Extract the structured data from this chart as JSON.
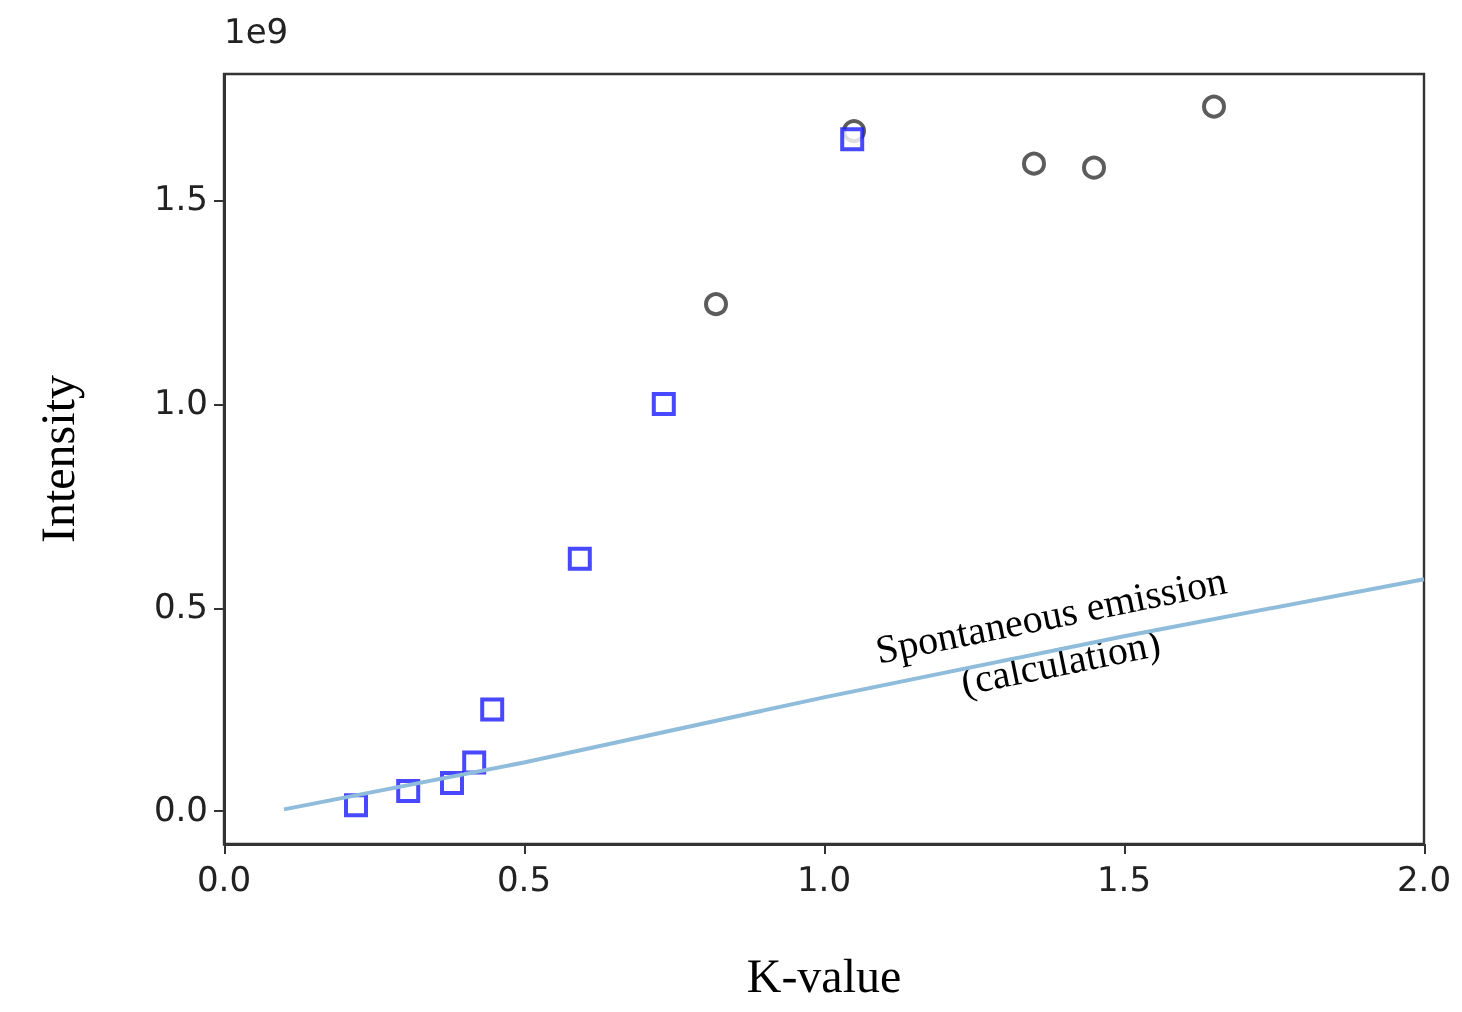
{
  "chart_data": {
    "type": "scatter",
    "xlabel": "K-value",
    "ylabel": "Intensity",
    "xlim": [
      0,
      2.0
    ],
    "xticks": [
      {
        "value": 0,
        "label": "0.0"
      },
      {
        "value": 0.5,
        "label": "0.5"
      },
      {
        "value": 1.0,
        "label": "1.0"
      },
      {
        "value": 1.5,
        "label": "1.5"
      },
      {
        "value": 2.0,
        "label": "2.0"
      }
    ],
    "ylim": [
      -0.08,
      1.81
    ],
    "yticks": [
      {
        "value": 0,
        "label": "0.0"
      },
      0.5,
      {
        "value": 1.0,
        "label": "1.0"
      },
      1.5
    ],
    "grid": false,
    "annotations": [
      "1e9",
      "Spontaneous emission\n(calculation)"
    ],
    "series": [
      {
        "marker": "circle",
        "color": "#333333",
        "x": [
          0.82,
          1.05,
          1.35,
          1.45,
          1.65
        ],
        "values": [
          1.245,
          1.67,
          1.59,
          1.58,
          1.73
        ]
      },
      {
        "marker": "square",
        "color": "#1a1aff",
        "x": [
          0.22,
          0.307,
          0.38,
          0.417,
          0.447,
          0.593,
          0.733,
          1.047
        ],
        "values": [
          0.015,
          0.05,
          0.07,
          0.12,
          0.25,
          0.62,
          1.0,
          1.65
        ]
      },
      {
        "type": "line",
        "marker": "none",
        "color": "#8fbcdb",
        "x": [
          0.1,
          0.5,
          1.0,
          1.5,
          2.0
        ],
        "values": [
          0.005,
          0.12,
          0.28,
          0.43,
          0.57
        ]
      }
    ]
  }
}
